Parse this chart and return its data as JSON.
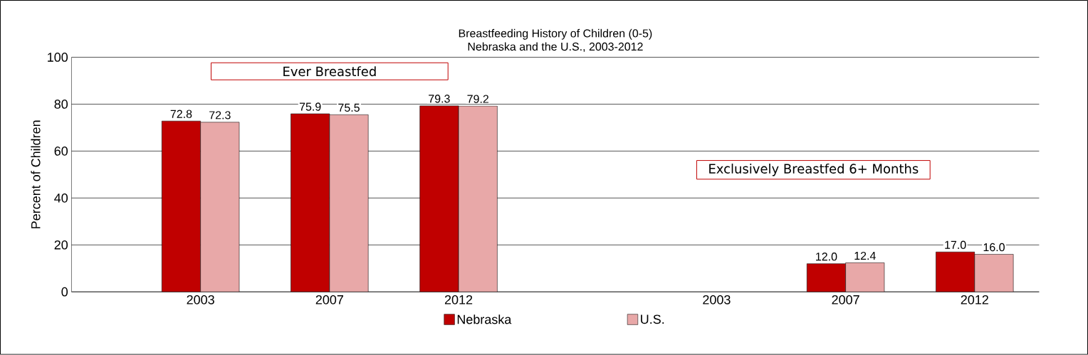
{
  "chart_data": {
    "type": "bar",
    "title": "Breastfeeding History of Children (0-5)",
    "subtitle": "Nebraska and the U.S., 2003-2012",
    "ylabel": "Percent of Children",
    "categories": [
      "2003",
      "2007",
      "2012",
      null,
      "2003",
      "2007",
      "2012"
    ],
    "series": [
      {
        "name": "Nebraska",
        "color": "#c00000",
        "values": [
          72.8,
          75.9,
          79.3,
          null,
          null,
          12.0,
          17.0
        ],
        "value_labels": [
          "72.8",
          "75.9",
          "79.3",
          null,
          null,
          "12.0",
          "17.0"
        ]
      },
      {
        "name": "U.S.",
        "color": "#e8a8a8",
        "values": [
          72.3,
          75.5,
          79.2,
          null,
          null,
          12.4,
          16.0
        ],
        "value_labels": [
          "72.3",
          "75.5",
          "79.2",
          null,
          null,
          "12.4",
          "16.0"
        ]
      }
    ],
    "annotations": [
      "Ever Breastfed",
      "Exclusively Breastfed 6+ Months"
    ],
    "ylim": [
      0,
      100
    ],
    "yticks": [
      0,
      20,
      40,
      60,
      80,
      100
    ],
    "grid": "y",
    "legend": "bottom"
  }
}
